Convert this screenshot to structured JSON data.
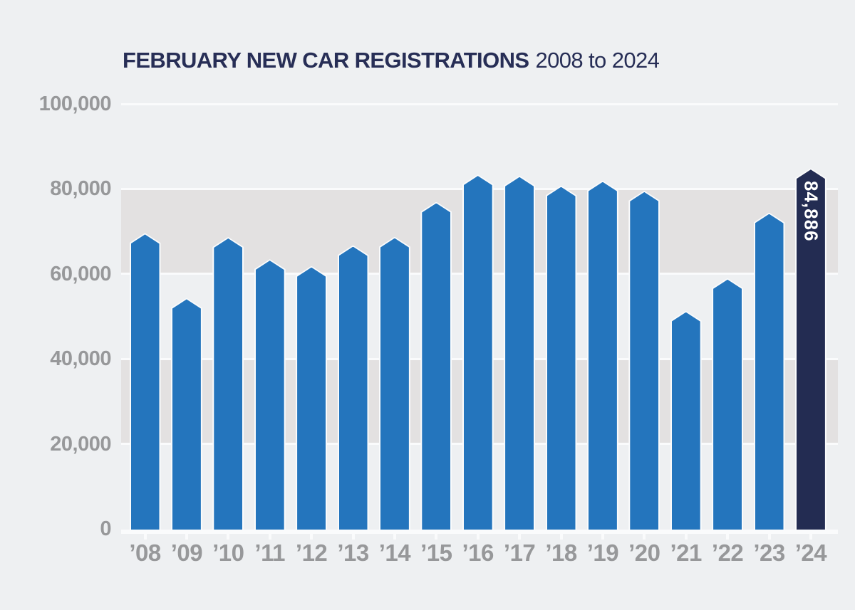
{
  "title": {
    "main": "FEBRUARY NEW CAR REGISTRATIONS",
    "range": "2008 to 2024"
  },
  "colors": {
    "background": "#eef0f2",
    "band": "#e3e1e1",
    "gridline": "#fafbfc",
    "bar_blue": "#2475bd",
    "bar_navy": "#232c52",
    "title_navy": "#272e56",
    "axis_text": "#97989a",
    "bar_label_text": "#ffffff"
  },
  "chart_data": {
    "type": "bar",
    "title": "FEBRUARY NEW CAR REGISTRATIONS 2008 to 2024",
    "xlabel": "",
    "ylabel": "",
    "categories": [
      "’08",
      "’09",
      "’10",
      "’11",
      "’12",
      "’13",
      "’14",
      "’15",
      "’16",
      "’17",
      "’18",
      "’19",
      "’20",
      "’21",
      "’22",
      "’23",
      "’24"
    ],
    "values": [
      69610,
      54359,
      68686,
      63454,
      61868,
      66749,
      68736,
      76958,
      83395,
      83115,
      80805,
      81969,
      79594,
      51312,
      58994,
      74441,
      84886
    ],
    "highlight": {
      "category": "’24",
      "value_label": "84,886"
    },
    "ylim": [
      0,
      100000
    ],
    "yticks": [
      {
        "label": "100,000",
        "value": 100000
      },
      {
        "label": "80,000",
        "value": 80000
      },
      {
        "label": "60,000",
        "value": 60000
      },
      {
        "label": "40,000",
        "value": 40000
      },
      {
        "label": "20,000",
        "value": 20000
      },
      {
        "label": "0",
        "value": 0
      }
    ],
    "grid": "alternating horizontal bands (60k-80k and 20k-40k shaded) with white gridlines every 20,000 and white baseline",
    "legend_position": "none"
  }
}
